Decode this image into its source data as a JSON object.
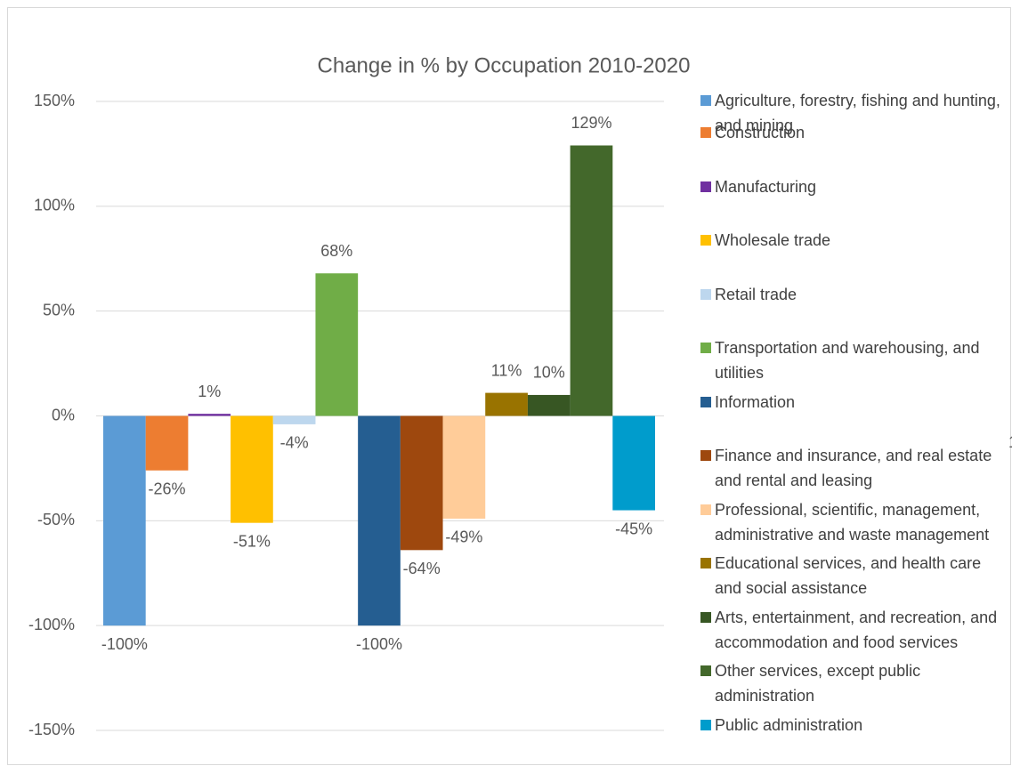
{
  "chart_data": {
    "type": "bar",
    "title": "Change in % by Occupation 2010-2020",
    "annotation": "1",
    "ylim": [
      -150,
      150
    ],
    "yticks": [
      {
        "value": -150,
        "label": "-150%"
      },
      {
        "value": -100,
        "label": "-100%"
      },
      {
        "value": -50,
        "label": "-50%"
      },
      {
        "value": 0,
        "label": "0%"
      },
      {
        "value": 50,
        "label": "50%"
      },
      {
        "value": 100,
        "label": "100%"
      },
      {
        "value": 150,
        "label": "150%"
      }
    ],
    "grid": true,
    "legend": "right",
    "series": [
      {
        "name": "Agriculture, forestry, fishing and hunting, and mining",
        "color": "#5b9bd5",
        "values": [
          -100
        ],
        "value_labels": [
          "-100%"
        ]
      },
      {
        "name": "Construction",
        "color": "#ed7d31",
        "values": [
          -26
        ],
        "value_labels": [
          "-26%"
        ]
      },
      {
        "name": "Manufacturing",
        "color": "#7030a0",
        "values": [
          1
        ],
        "value_labels": [
          "1%"
        ]
      },
      {
        "name": "Wholesale trade",
        "color": "#ffc000",
        "values": [
          -51
        ],
        "value_labels": [
          "-51%"
        ]
      },
      {
        "name": "Retail trade",
        "color": "#bdd7ee",
        "values": [
          -4
        ],
        "value_labels": [
          "-4%"
        ]
      },
      {
        "name": "Transportation and warehousing, and utilities",
        "color": "#70ad47",
        "values": [
          68
        ],
        "value_labels": [
          "68%"
        ]
      },
      {
        "name": "Information",
        "color": "#255e91",
        "values": [
          -100
        ],
        "value_labels": [
          "-100%"
        ]
      },
      {
        "name": "Finance and insurance, and real estate and rental and leasing",
        "color": "#9e480e",
        "values": [
          -64
        ],
        "value_labels": [
          "-64%"
        ]
      },
      {
        "name": "Professional, scientific, management, administrative and waste management",
        "color": "#ffcc99",
        "values": [
          -49
        ],
        "value_labels": [
          "-49%"
        ]
      },
      {
        "name": "Educational services, and health care and social assistance",
        "color": "#997300",
        "values": [
          11
        ],
        "value_labels": [
          "11%"
        ]
      },
      {
        "name": "Arts, entertainment, and recreation, and accommodation and food services",
        "color": "#375623",
        "values": [
          10
        ],
        "value_labels": [
          "10%"
        ]
      },
      {
        "name": "Other services, except public administration",
        "color": "#43682b",
        "values": [
          129
        ],
        "value_labels": [
          "129%"
        ]
      },
      {
        "name": "Public administration",
        "color": "#009ccc",
        "values": [
          -45
        ],
        "value_labels": [
          "-45%"
        ]
      }
    ]
  }
}
